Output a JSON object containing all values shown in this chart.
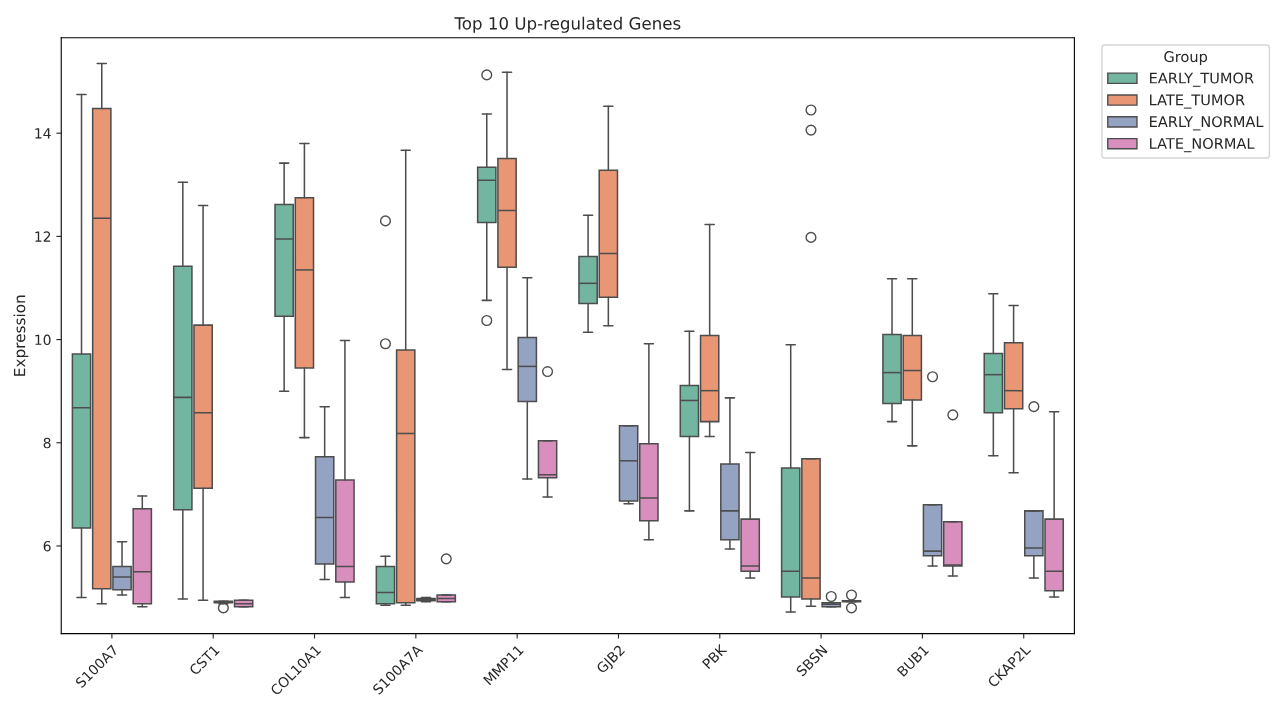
{
  "chart_data": {
    "type": "box",
    "title": "Top 10 Up-regulated Genes",
    "ylabel": "Expression",
    "legend_title": "Group",
    "legend": "top right",
    "grid": false,
    "categories": [
      "S100A7",
      "CST1",
      "COL10A1",
      "S100A7A",
      "MMP11",
      "GJB2",
      "PBK",
      "SBSN",
      "BUB1",
      "CKAP2L"
    ],
    "ylim": [
      4.3,
      15.85
    ],
    "yticks": [
      6,
      8,
      10,
      12,
      14
    ],
    "series": [
      {
        "name": "EARLY_TUMOR",
        "color": "#72b6a1",
        "boxes": [
          {
            "low": 5.0,
            "q1": 6.35,
            "median": 8.68,
            "q3": 9.72,
            "high": 14.75
          },
          {
            "low": 4.97,
            "q1": 6.7,
            "median": 8.88,
            "q3": 11.42,
            "high": 13.05
          },
          {
            "low": 9.0,
            "q1": 10.45,
            "median": 11.95,
            "q3": 12.62,
            "high": 13.42
          },
          {
            "low": 4.85,
            "q1": 4.88,
            "median": 5.1,
            "q3": 5.6,
            "high": 5.8,
            "outliers": [
              12.3,
              9.92
            ]
          },
          {
            "low": 10.76,
            "q1": 12.27,
            "median": 13.09,
            "q3": 13.34,
            "high": 14.37,
            "outliers": [
              15.13,
              10.37
            ]
          },
          {
            "low": 10.14,
            "q1": 10.7,
            "median": 11.09,
            "q3": 11.61,
            "high": 12.41
          },
          {
            "low": 6.68,
            "q1": 8.12,
            "median": 8.82,
            "q3": 9.11,
            "high": 10.16
          },
          {
            "low": 4.72,
            "q1": 5.01,
            "median": 5.51,
            "q3": 7.51,
            "high": 9.9
          },
          {
            "low": 8.41,
            "q1": 8.76,
            "median": 9.36,
            "q3": 10.1,
            "high": 11.18
          },
          {
            "low": 7.75,
            "q1": 8.58,
            "median": 9.32,
            "q3": 9.73,
            "high": 10.89
          }
        ]
      },
      {
        "name": "LATE_TUMOR",
        "color": "#e99675",
        "boxes": [
          {
            "low": 4.88,
            "q1": 5.17,
            "median": 12.35,
            "q3": 14.48,
            "high": 15.35
          },
          {
            "low": 4.95,
            "q1": 7.12,
            "median": 8.58,
            "q3": 10.28,
            "high": 12.6
          },
          {
            "low": 8.1,
            "q1": 9.45,
            "median": 11.35,
            "q3": 12.75,
            "high": 13.8
          },
          {
            "low": 4.85,
            "q1": 4.9,
            "median": 8.18,
            "q3": 9.8,
            "high": 13.67
          },
          {
            "low": 9.42,
            "q1": 11.4,
            "median": 12.5,
            "q3": 13.51,
            "high": 15.18
          },
          {
            "low": 10.27,
            "q1": 10.82,
            "median": 11.67,
            "q3": 13.28,
            "high": 14.52
          },
          {
            "low": 8.12,
            "q1": 8.41,
            "median": 9.01,
            "q3": 10.08,
            "high": 12.23
          },
          {
            "low": 4.83,
            "q1": 4.97,
            "median": 5.38,
            "q3": 7.69,
            "high": 7.69,
            "outliers": [
              14.45,
              14.06,
              11.98
            ]
          },
          {
            "low": 7.94,
            "q1": 8.83,
            "median": 9.4,
            "q3": 10.08,
            "high": 11.18
          },
          {
            "low": 7.42,
            "q1": 8.66,
            "median": 9.01,
            "q3": 9.94,
            "high": 10.66
          }
        ]
      },
      {
        "name": "EARLY_NORMAL",
        "color": "#95a3c3",
        "boxes": [
          {
            "low": 5.05,
            "q1": 5.15,
            "median": 5.4,
            "q3": 5.6,
            "high": 6.08
          },
          {
            "low": 4.88,
            "q1": 4.9,
            "median": 4.92,
            "q3": 4.93,
            "high": 4.93,
            "outliers": [
              4.8
            ]
          },
          {
            "low": 5.35,
            "q1": 5.65,
            "median": 6.55,
            "q3": 7.73,
            "high": 8.7
          },
          {
            "low": 4.92,
            "q1": 4.94,
            "median": 4.96,
            "q3": 4.98,
            "high": 5.0
          },
          {
            "low": 7.3,
            "q1": 8.8,
            "median": 9.48,
            "q3": 10.04,
            "high": 11.2
          },
          {
            "low": 6.82,
            "q1": 6.87,
            "median": 7.65,
            "q3": 8.33,
            "high": 8.33
          },
          {
            "low": 5.94,
            "q1": 6.12,
            "median": 6.68,
            "q3": 7.59,
            "high": 8.87
          },
          {
            "low": 4.82,
            "q1": 4.82,
            "median": 4.87,
            "q3": 4.9,
            "high": 4.9,
            "outliers": [
              5.02
            ]
          },
          {
            "low": 5.61,
            "q1": 5.81,
            "median": 5.9,
            "q3": 6.8,
            "high": 6.8,
            "outliers": [
              9.28
            ]
          },
          {
            "low": 5.38,
            "q1": 5.81,
            "median": 5.96,
            "q3": 6.68,
            "high": 6.68,
            "outliers": [
              8.7
            ]
          }
        ]
      },
      {
        "name": "LATE_NORMAL",
        "color": "#d98fbe",
        "boxes": [
          {
            "low": 4.82,
            "q1": 4.88,
            "median": 5.5,
            "q3": 6.72,
            "high": 6.97
          },
          {
            "low": 4.82,
            "q1": 4.82,
            "median": 4.88,
            "q3": 4.95,
            "high": 4.95
          },
          {
            "low": 5.0,
            "q1": 5.3,
            "median": 5.6,
            "q3": 7.28,
            "high": 9.98
          },
          {
            "low": 4.92,
            "q1": 4.92,
            "median": 4.98,
            "q3": 5.05,
            "high": 5.05,
            "outliers": [
              5.75
            ]
          },
          {
            "low": 6.95,
            "q1": 7.32,
            "median": 7.38,
            "q3": 8.04,
            "high": 8.04,
            "outliers": [
              9.38
            ]
          },
          {
            "low": 6.12,
            "q1": 6.49,
            "median": 6.93,
            "q3": 7.98,
            "high": 9.92
          },
          {
            "low": 5.38,
            "q1": 5.51,
            "median": 5.61,
            "q3": 6.52,
            "high": 7.81
          },
          {
            "low": 4.92,
            "q1": 4.92,
            "median": 4.93,
            "q3": 4.94,
            "high": 4.94,
            "outliers": [
              5.05,
              4.8
            ]
          },
          {
            "low": 5.42,
            "q1": 5.61,
            "median": 5.63,
            "q3": 6.47,
            "high": 6.47,
            "outliers": [
              8.54
            ]
          },
          {
            "low": 5.01,
            "q1": 5.13,
            "median": 5.51,
            "q3": 6.52,
            "high": 8.6
          }
        ]
      }
    ]
  }
}
